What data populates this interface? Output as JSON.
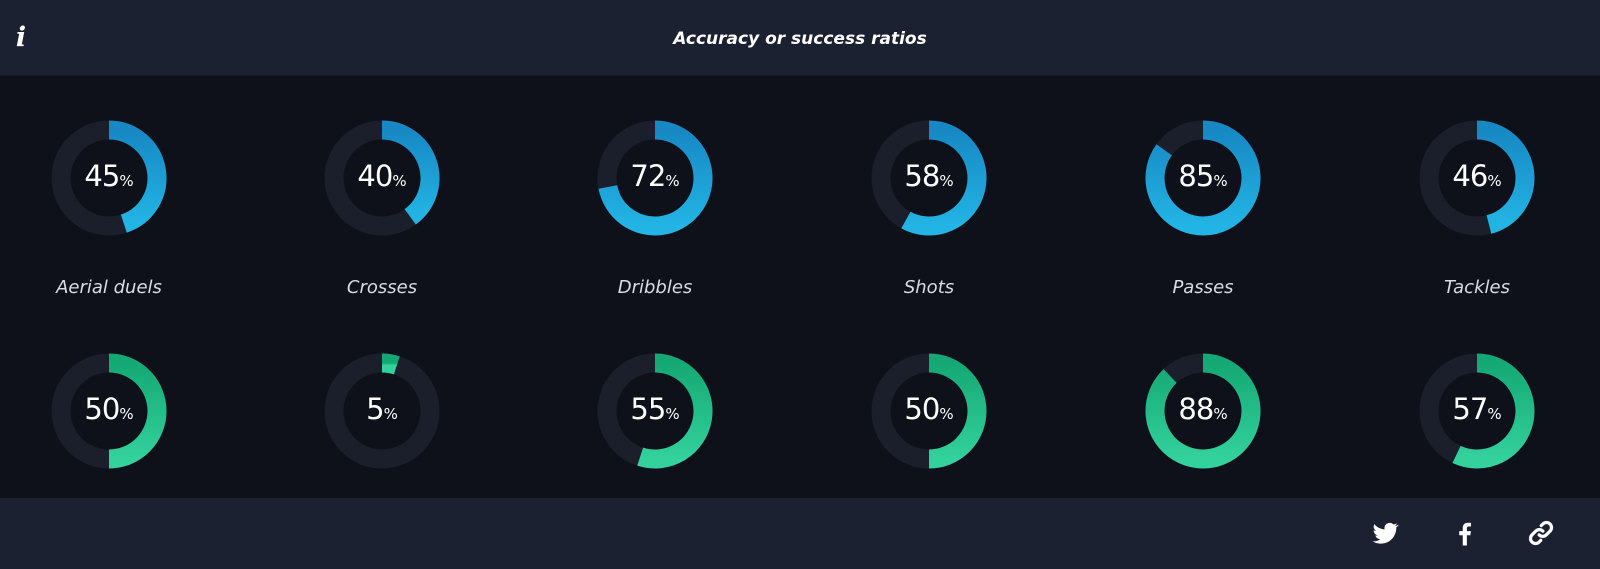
{
  "header": {
    "title": "Accuracy or success ratios",
    "info_icon": "info-icon"
  },
  "footer": {
    "share_icons": [
      "twitter-icon",
      "facebook-icon",
      "link-icon"
    ]
  },
  "colors": {
    "header_bg": "#1c2131",
    "body_bg": "#0f111a",
    "track": "#1b1f2b",
    "row1_arc": "#1a9ad3",
    "row2_arc": "#1fbd88"
  },
  "chart_data": {
    "type": "donut",
    "title": "Accuracy or success ratios",
    "categories": [
      "Aerial duels",
      "Crosses",
      "Dribbles",
      "Shots",
      "Passes",
      "Tackles"
    ],
    "unit": "%",
    "ylim": [
      0,
      100
    ],
    "series": [
      {
        "values": [
          45,
          40,
          72,
          58,
          85,
          46
        ],
        "color": "#1a9ad3"
      },
      {
        "values": [
          50,
          5,
          55,
          50,
          88,
          57
        ],
        "color": "#1fbd88"
      }
    ]
  }
}
